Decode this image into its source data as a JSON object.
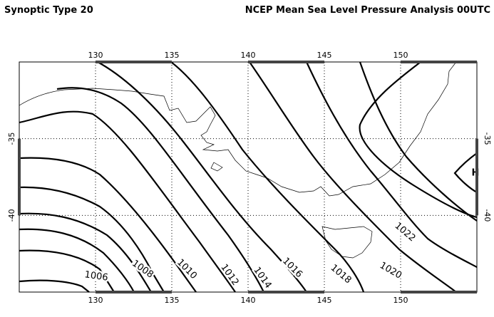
{
  "header": {
    "title_left": "Synoptic Type 20",
    "title_right": "NCEP Mean Sea Level Pressure Analysis 00UTC"
  },
  "map": {
    "xlim": [
      125,
      155
    ],
    "ylim": [
      -45,
      -30
    ],
    "xticks": [
      130,
      135,
      140,
      145,
      150
    ],
    "yticks": [
      -35,
      -40
    ]
  },
  "contours": [
    {
      "level": 1006,
      "label": "1006"
    },
    {
      "level": 1008,
      "label": "1008"
    },
    {
      "level": 1010,
      "label": "1010"
    },
    {
      "level": 1012,
      "label": "1012"
    },
    {
      "level": 1014,
      "label": "1014"
    },
    {
      "level": 1016,
      "label": "1016"
    },
    {
      "level": 1018,
      "label": "1018"
    },
    {
      "level": 1020,
      "label": "1020"
    },
    {
      "level": 1022,
      "label": "1022"
    }
  ],
  "high_label": "H"
}
